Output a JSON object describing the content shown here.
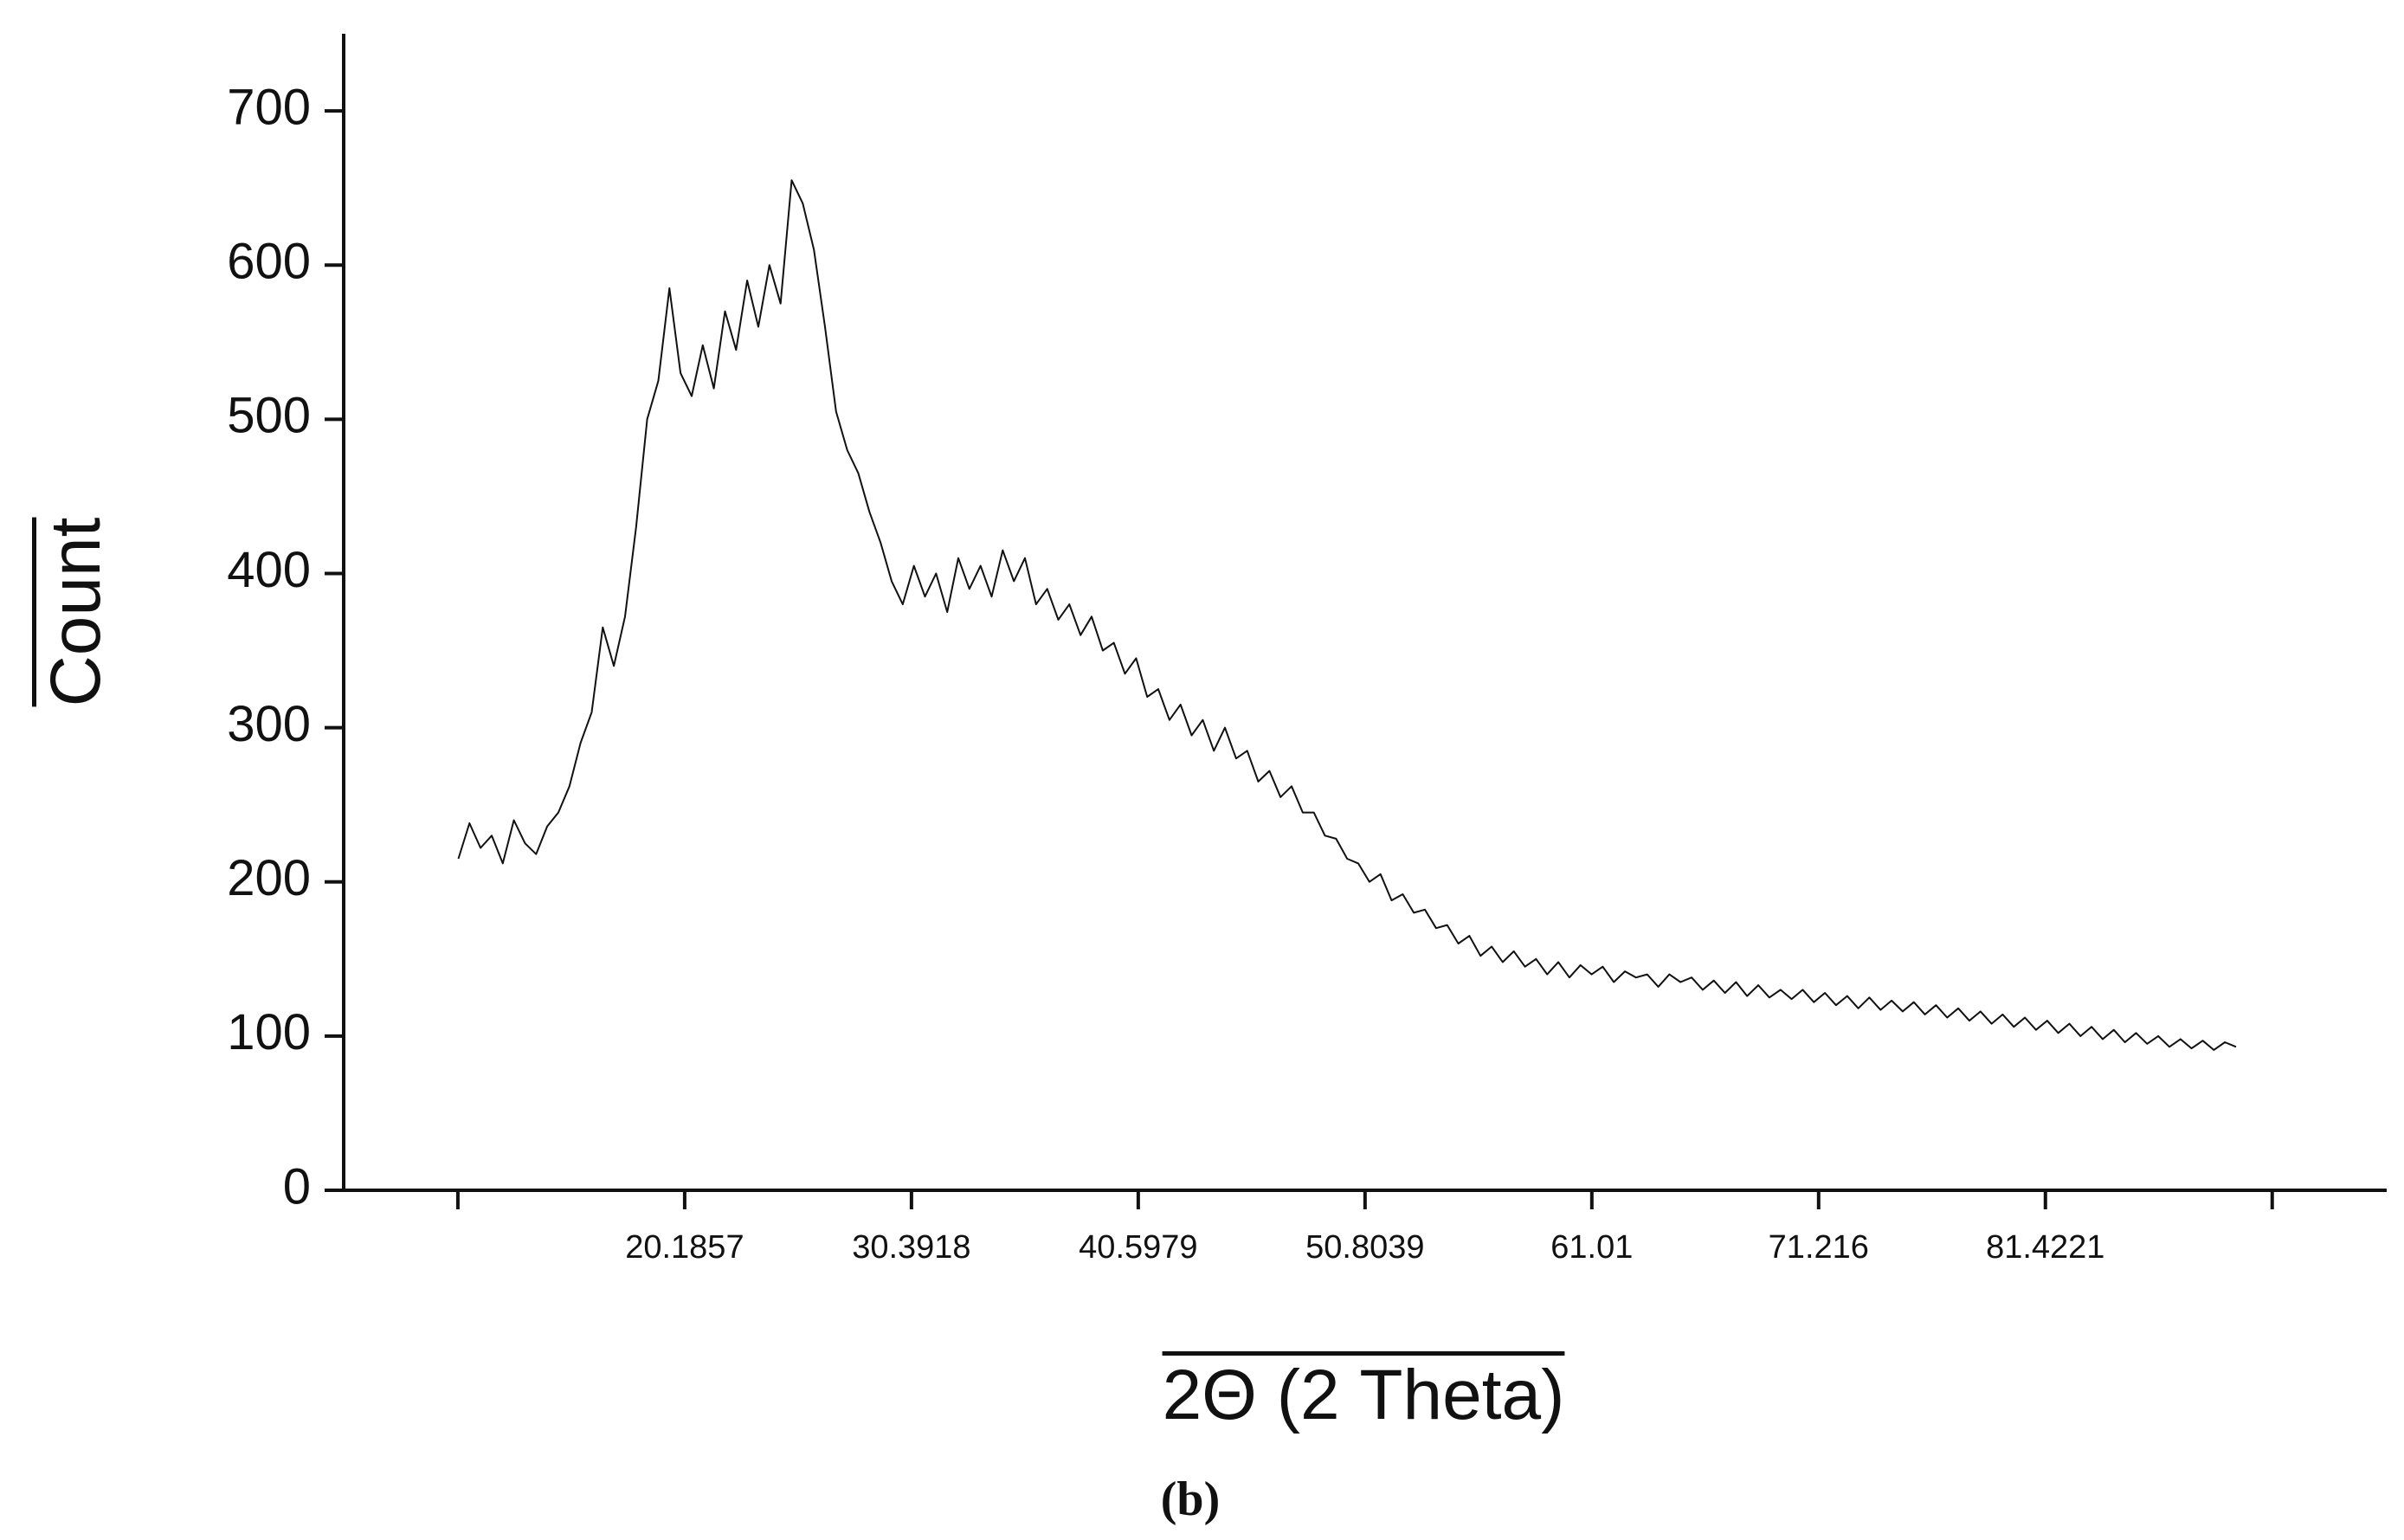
{
  "chart_data": {
    "type": "line",
    "x_label": "2Θ (2 Theta)",
    "y_label": "Count",
    "caption": "(b)",
    "xlim": [
      4.84,
      96.78
    ],
    "ylim": [
      0,
      750
    ],
    "xticks": [
      {
        "value": 9.9796,
        "label": null
      },
      20.1857,
      30.3918,
      40.5979,
      50.8039,
      61.01,
      71.216,
      81.4221,
      {
        "value": 91.6282,
        "label": null
      }
    ],
    "yticks": [
      0,
      100,
      200,
      300,
      400,
      500,
      600,
      700
    ],
    "x": [
      10,
      10.5,
      11,
      11.5,
      12,
      12.5,
      13,
      13.5,
      14,
      14.5,
      15,
      15.5,
      16,
      16.5,
      17,
      17.5,
      18,
      18.5,
      19,
      19.5,
      20,
      20.5,
      21,
      21.5,
      22,
      22.5,
      23,
      23.5,
      24,
      24.5,
      25,
      25.5,
      26,
      26.5,
      27,
      27.5,
      28,
      28.5,
      29,
      29.5,
      30,
      30.5,
      31,
      31.5,
      32,
      32.5,
      33,
      33.5,
      34,
      34.5,
      35,
      35.5,
      36,
      36.5,
      37,
      37.5,
      38,
      38.5,
      39,
      39.5,
      40,
      40.5,
      41,
      41.5,
      42,
      42.5,
      43,
      43.5,
      44,
      44.5,
      45,
      45.5,
      46,
      46.5,
      47,
      47.5,
      48,
      48.5,
      49,
      49.5,
      50,
      50.5,
      51,
      51.5,
      52,
      52.5,
      53,
      53.5,
      54,
      54.5,
      55,
      55.5,
      56,
      56.5,
      57,
      57.5,
      58,
      58.5,
      59,
      59.5,
      60,
      60.5,
      61,
      61.5,
      62,
      62.5,
      63,
      63.5,
      64,
      64.5,
      65,
      65.5,
      66,
      66.5,
      67,
      67.5,
      68,
      68.5,
      69,
      69.5,
      70,
      70.5,
      71,
      71.5,
      72,
      72.5,
      73,
      73.5,
      74,
      74.5,
      75,
      75.5,
      76,
      76.5,
      77,
      77.5,
      78,
      78.5,
      79,
      79.5,
      80,
      80.5,
      81,
      81.5,
      82,
      82.5,
      83,
      83.5,
      84,
      84.5,
      85,
      85.5,
      86,
      86.5,
      87,
      87.5,
      88,
      88.5,
      89,
      89.5,
      90
    ],
    "series": [
      {
        "color": "#111111",
        "values": [
          215,
          238,
          222,
          230,
          212,
          240,
          225,
          218,
          236,
          245,
          262,
          290,
          310,
          365,
          340,
          372,
          430,
          500,
          525,
          585,
          530,
          515,
          548,
          520,
          570,
          545,
          590,
          560,
          600,
          575,
          655,
          640,
          610,
          560,
          505,
          480,
          465,
          440,
          420,
          395,
          380,
          405,
          385,
          400,
          375,
          410,
          390,
          405,
          385,
          415,
          395,
          410,
          380,
          390,
          370,
          380,
          360,
          372,
          350,
          355,
          335,
          345,
          320,
          325,
          305,
          315,
          295,
          305,
          285,
          300,
          280,
          285,
          265,
          272,
          255,
          262,
          245,
          245,
          230,
          228,
          215,
          212,
          200,
          205,
          188,
          192,
          180,
          182,
          170,
          172,
          160,
          165,
          152,
          158,
          148,
          155,
          145,
          150,
          140,
          148,
          138,
          146,
          140,
          145,
          135,
          142,
          138,
          140,
          132,
          140,
          135,
          138,
          130,
          136,
          128,
          135,
          126,
          133,
          125,
          130,
          124,
          130,
          122,
          128,
          120,
          126,
          118,
          125,
          117,
          123,
          116,
          122,
          114,
          120,
          112,
          118,
          110,
          116,
          108,
          114,
          106,
          112,
          104,
          110,
          102,
          108,
          100,
          106,
          98,
          104,
          96,
          102,
          95,
          100,
          93,
          98,
          92,
          97,
          91,
          96,
          93
        ]
      }
    ]
  }
}
